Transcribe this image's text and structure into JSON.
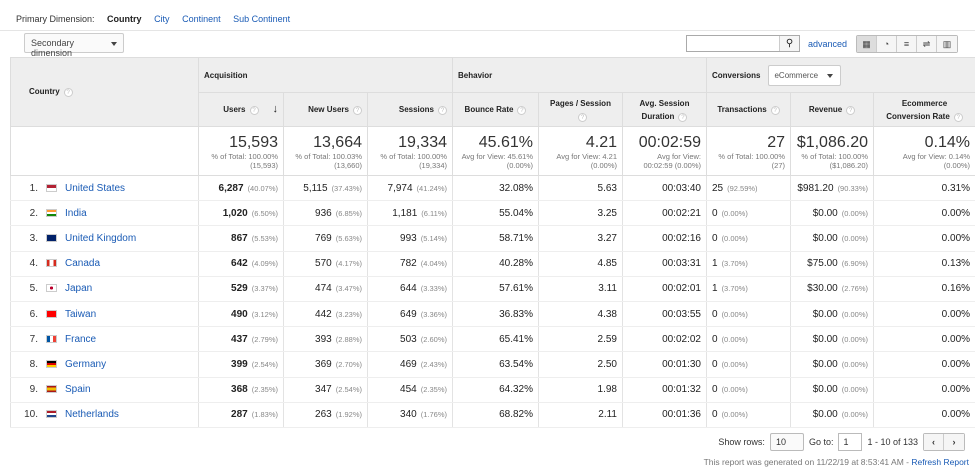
{
  "primary_dimension": {
    "label": "Primary Dimension:",
    "options": [
      "Country",
      "City",
      "Continent",
      "Sub Continent"
    ],
    "selected": "Country"
  },
  "secondary_dimension": "Secondary dimension",
  "search": {
    "value": "",
    "icon": "search-icon"
  },
  "advanced": "advanced",
  "view_icons": [
    "table-view-icon",
    "pie-view-icon",
    "performance-view-icon",
    "comparison-view-icon",
    "pivot-view-icon"
  ],
  "headers": {
    "country": "Country",
    "acquisition": "Acquisition",
    "behavior": "Behavior",
    "conversions": "Conversions",
    "conversion_select": "eCommerce",
    "columns": [
      "Users",
      "New Users",
      "Sessions",
      "Bounce Rate",
      "Pages / Session",
      "Avg. Session Duration",
      "Transactions",
      "Revenue",
      "Ecommerce Conversion Rate"
    ]
  },
  "totals": [
    {
      "value": "15,593",
      "sub": "% of Total: 100.00% (15,593)"
    },
    {
      "value": "13,664",
      "sub": "% of Total: 100.03% (13,660)"
    },
    {
      "value": "19,334",
      "sub": "% of Total: 100.00% (19,334)"
    },
    {
      "value": "45.61%",
      "sub": "Avg for View: 45.61% (0.00%)"
    },
    {
      "value": "4.21",
      "sub": "Avg for View: 4.21 (0.00%)"
    },
    {
      "value": "00:02:59",
      "sub": "Avg for View: 00:02:59 (0.00%)"
    },
    {
      "value": "27",
      "sub": "% of Total: 100.00% (27)"
    },
    {
      "value": "$1,086.20",
      "sub": "% of Total: 100.00% ($1,086.20)"
    },
    {
      "value": "0.14%",
      "sub": "Avg for View: 0.14% (0.00%)"
    }
  ],
  "rows": [
    {
      "idx": "1.",
      "country": "United States",
      "flag": "us",
      "users": "6,287",
      "users_pct": "(40.07%)",
      "new_users": "5,115",
      "new_pct": "(37.43%)",
      "sessions": "7,974",
      "sess_pct": "(41.24%)",
      "bounce": "32.08%",
      "pages": "5.63",
      "duration": "00:03:40",
      "trans": "25",
      "trans_pct": "(92.59%)",
      "revenue": "$981.20",
      "rev_pct": "(90.33%)",
      "conv": "0.31%"
    },
    {
      "idx": "2.",
      "country": "India",
      "flag": "in",
      "users": "1,020",
      "users_pct": "(6.50%)",
      "new_users": "936",
      "new_pct": "(6.85%)",
      "sessions": "1,181",
      "sess_pct": "(6.11%)",
      "bounce": "55.04%",
      "pages": "3.25",
      "duration": "00:02:21",
      "trans": "0",
      "trans_pct": "(0.00%)",
      "revenue": "$0.00",
      "rev_pct": "(0.00%)",
      "conv": "0.00%"
    },
    {
      "idx": "3.",
      "country": "United Kingdom",
      "flag": "gb",
      "users": "867",
      "users_pct": "(5.53%)",
      "new_users": "769",
      "new_pct": "(5.63%)",
      "sessions": "993",
      "sess_pct": "(5.14%)",
      "bounce": "58.71%",
      "pages": "3.27",
      "duration": "00:02:16",
      "trans": "0",
      "trans_pct": "(0.00%)",
      "revenue": "$0.00",
      "rev_pct": "(0.00%)",
      "conv": "0.00%"
    },
    {
      "idx": "4.",
      "country": "Canada",
      "flag": "ca",
      "users": "642",
      "users_pct": "(4.09%)",
      "new_users": "570",
      "new_pct": "(4.17%)",
      "sessions": "782",
      "sess_pct": "(4.04%)",
      "bounce": "40.28%",
      "pages": "4.85",
      "duration": "00:03:31",
      "trans": "1",
      "trans_pct": "(3.70%)",
      "revenue": "$75.00",
      "rev_pct": "(6.90%)",
      "conv": "0.13%"
    },
    {
      "idx": "5.",
      "country": "Japan",
      "flag": "jp",
      "users": "529",
      "users_pct": "(3.37%)",
      "new_users": "474",
      "new_pct": "(3.47%)",
      "sessions": "644",
      "sess_pct": "(3.33%)",
      "bounce": "57.61%",
      "pages": "3.11",
      "duration": "00:02:01",
      "trans": "1",
      "trans_pct": "(3.70%)",
      "revenue": "$30.00",
      "rev_pct": "(2.76%)",
      "conv": "0.16%"
    },
    {
      "idx": "6.",
      "country": "Taiwan",
      "flag": "tw",
      "users": "490",
      "users_pct": "(3.12%)",
      "new_users": "442",
      "new_pct": "(3.23%)",
      "sessions": "649",
      "sess_pct": "(3.36%)",
      "bounce": "36.83%",
      "pages": "4.38",
      "duration": "00:03:55",
      "trans": "0",
      "trans_pct": "(0.00%)",
      "revenue": "$0.00",
      "rev_pct": "(0.00%)",
      "conv": "0.00%"
    },
    {
      "idx": "7.",
      "country": "France",
      "flag": "fr",
      "users": "437",
      "users_pct": "(2.79%)",
      "new_users": "393",
      "new_pct": "(2.88%)",
      "sessions": "503",
      "sess_pct": "(2.60%)",
      "bounce": "65.41%",
      "pages": "2.59",
      "duration": "00:02:02",
      "trans": "0",
      "trans_pct": "(0.00%)",
      "revenue": "$0.00",
      "rev_pct": "(0.00%)",
      "conv": "0.00%"
    },
    {
      "idx": "8.",
      "country": "Germany",
      "flag": "de",
      "users": "399",
      "users_pct": "(2.54%)",
      "new_users": "369",
      "new_pct": "(2.70%)",
      "sessions": "469",
      "sess_pct": "(2.43%)",
      "bounce": "63.54%",
      "pages": "2.50",
      "duration": "00:01:30",
      "trans": "0",
      "trans_pct": "(0.00%)",
      "revenue": "$0.00",
      "rev_pct": "(0.00%)",
      "conv": "0.00%"
    },
    {
      "idx": "9.",
      "country": "Spain",
      "flag": "es",
      "users": "368",
      "users_pct": "(2.35%)",
      "new_users": "347",
      "new_pct": "(2.54%)",
      "sessions": "454",
      "sess_pct": "(2.35%)",
      "bounce": "64.32%",
      "pages": "1.98",
      "duration": "00:01:32",
      "trans": "0",
      "trans_pct": "(0.00%)",
      "revenue": "$0.00",
      "rev_pct": "(0.00%)",
      "conv": "0.00%"
    },
    {
      "idx": "10.",
      "country": "Netherlands",
      "flag": "nl",
      "users": "287",
      "users_pct": "(1.83%)",
      "new_users": "263",
      "new_pct": "(1.92%)",
      "sessions": "340",
      "sess_pct": "(1.76%)",
      "bounce": "68.82%",
      "pages": "2.11",
      "duration": "00:01:36",
      "trans": "0",
      "trans_pct": "(0.00%)",
      "revenue": "$0.00",
      "rev_pct": "(0.00%)",
      "conv": "0.00%"
    }
  ],
  "footer": {
    "show_rows_label": "Show rows:",
    "show_rows": "10",
    "goto_label": "Go to:",
    "goto": "1",
    "range": "1 - 10 of 133",
    "generated": "This report was generated on 11/22/19 at 8:53:41 AM - ",
    "refresh": "Refresh Report"
  },
  "colors": {
    "link": "#1a5bb5",
    "header_bg": "#eeeeee"
  }
}
